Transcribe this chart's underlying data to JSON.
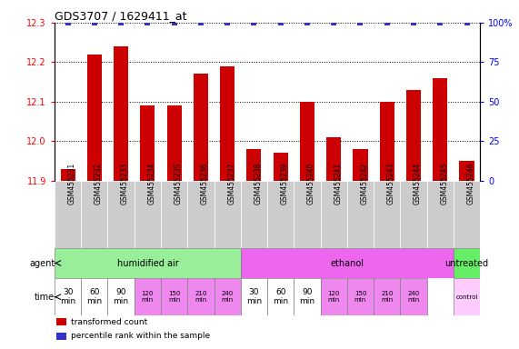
{
  "title": "GDS3707 / 1629411_at",
  "samples": [
    "GSM455231",
    "GSM455232",
    "GSM455233",
    "GSM455234",
    "GSM455235",
    "GSM455236",
    "GSM455237",
    "GSM455238",
    "GSM455239",
    "GSM455240",
    "GSM455241",
    "GSM455242",
    "GSM455243",
    "GSM455244",
    "GSM455245",
    "GSM455246"
  ],
  "bar_values": [
    11.93,
    12.22,
    12.24,
    12.09,
    12.09,
    12.17,
    12.19,
    11.98,
    11.97,
    12.1,
    12.01,
    11.98,
    12.1,
    12.13,
    12.16,
    11.95
  ],
  "percentile_values": [
    100,
    100,
    100,
    100,
    100,
    100,
    100,
    100,
    100,
    100,
    100,
    100,
    100,
    100,
    100,
    100
  ],
  "ylim_left": [
    11.9,
    12.3
  ],
  "ylim_right": [
    0,
    100
  ],
  "yticks_left": [
    11.9,
    12.0,
    12.1,
    12.2,
    12.3
  ],
  "yticks_right": [
    0,
    25,
    50,
    75,
    100
  ],
  "bar_color": "#cc0000",
  "percentile_color": "#3333cc",
  "agent_groups": [
    {
      "label": "humidified air",
      "start": 0,
      "end": 7,
      "color": "#99ee99"
    },
    {
      "label": "ethanol",
      "start": 7,
      "end": 15,
      "color": "#ee66ee"
    },
    {
      "label": "untreated",
      "start": 15,
      "end": 16,
      "color": "#66ee66"
    }
  ],
  "time_cell_colors": [
    "#ffffff",
    "#ffffff",
    "#ffffff",
    "#ee88ee",
    "#ee88ee",
    "#ee88ee",
    "#ee88ee",
    "#ffffff",
    "#ffffff",
    "#ffffff",
    "#ee88ee",
    "#ee88ee",
    "#ee88ee",
    "#ee88ee",
    null,
    "#ffccff"
  ],
  "time_labels": [
    "30\nmin",
    "60\nmin",
    "90\nmin",
    "120\nmin",
    "150\nmin",
    "210\nmin",
    "240\nmin",
    "30\nmin",
    "60\nmin",
    "90\nmin",
    "120\nmin",
    "150\nmin",
    "210\nmin",
    "240\nmin",
    null,
    "control"
  ],
  "legend_items": [
    {
      "label": "transformed count",
      "color": "#cc0000"
    },
    {
      "label": "percentile rank within the sample",
      "color": "#3333cc"
    }
  ],
  "background_color": "#ffffff",
  "sample_bg_color": "#cccccc"
}
